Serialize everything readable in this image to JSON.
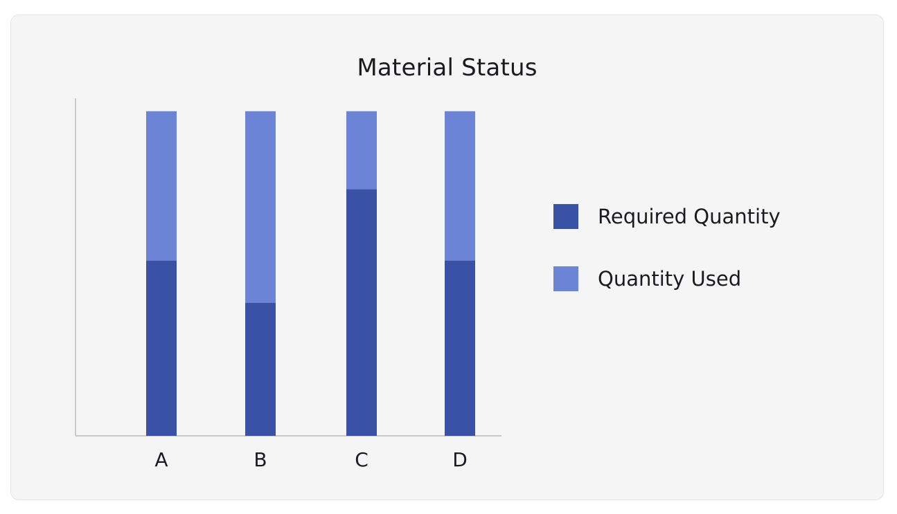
{
  "chart_data": {
    "type": "bar",
    "stacked": true,
    "title": "Material Status",
    "categories": [
      "A",
      "B",
      "C",
      "D"
    ],
    "series": [
      {
        "name": "Required Quantity",
        "values": [
          54,
          41,
          76,
          54
        ],
        "color": "#3a52a5"
      },
      {
        "name": "Quantity Used",
        "values": [
          46,
          59,
          24,
          46
        ],
        "color": "#6b84d6"
      }
    ],
    "ylim": [
      0,
      104
    ],
    "grid": false,
    "legend_position": "right"
  }
}
